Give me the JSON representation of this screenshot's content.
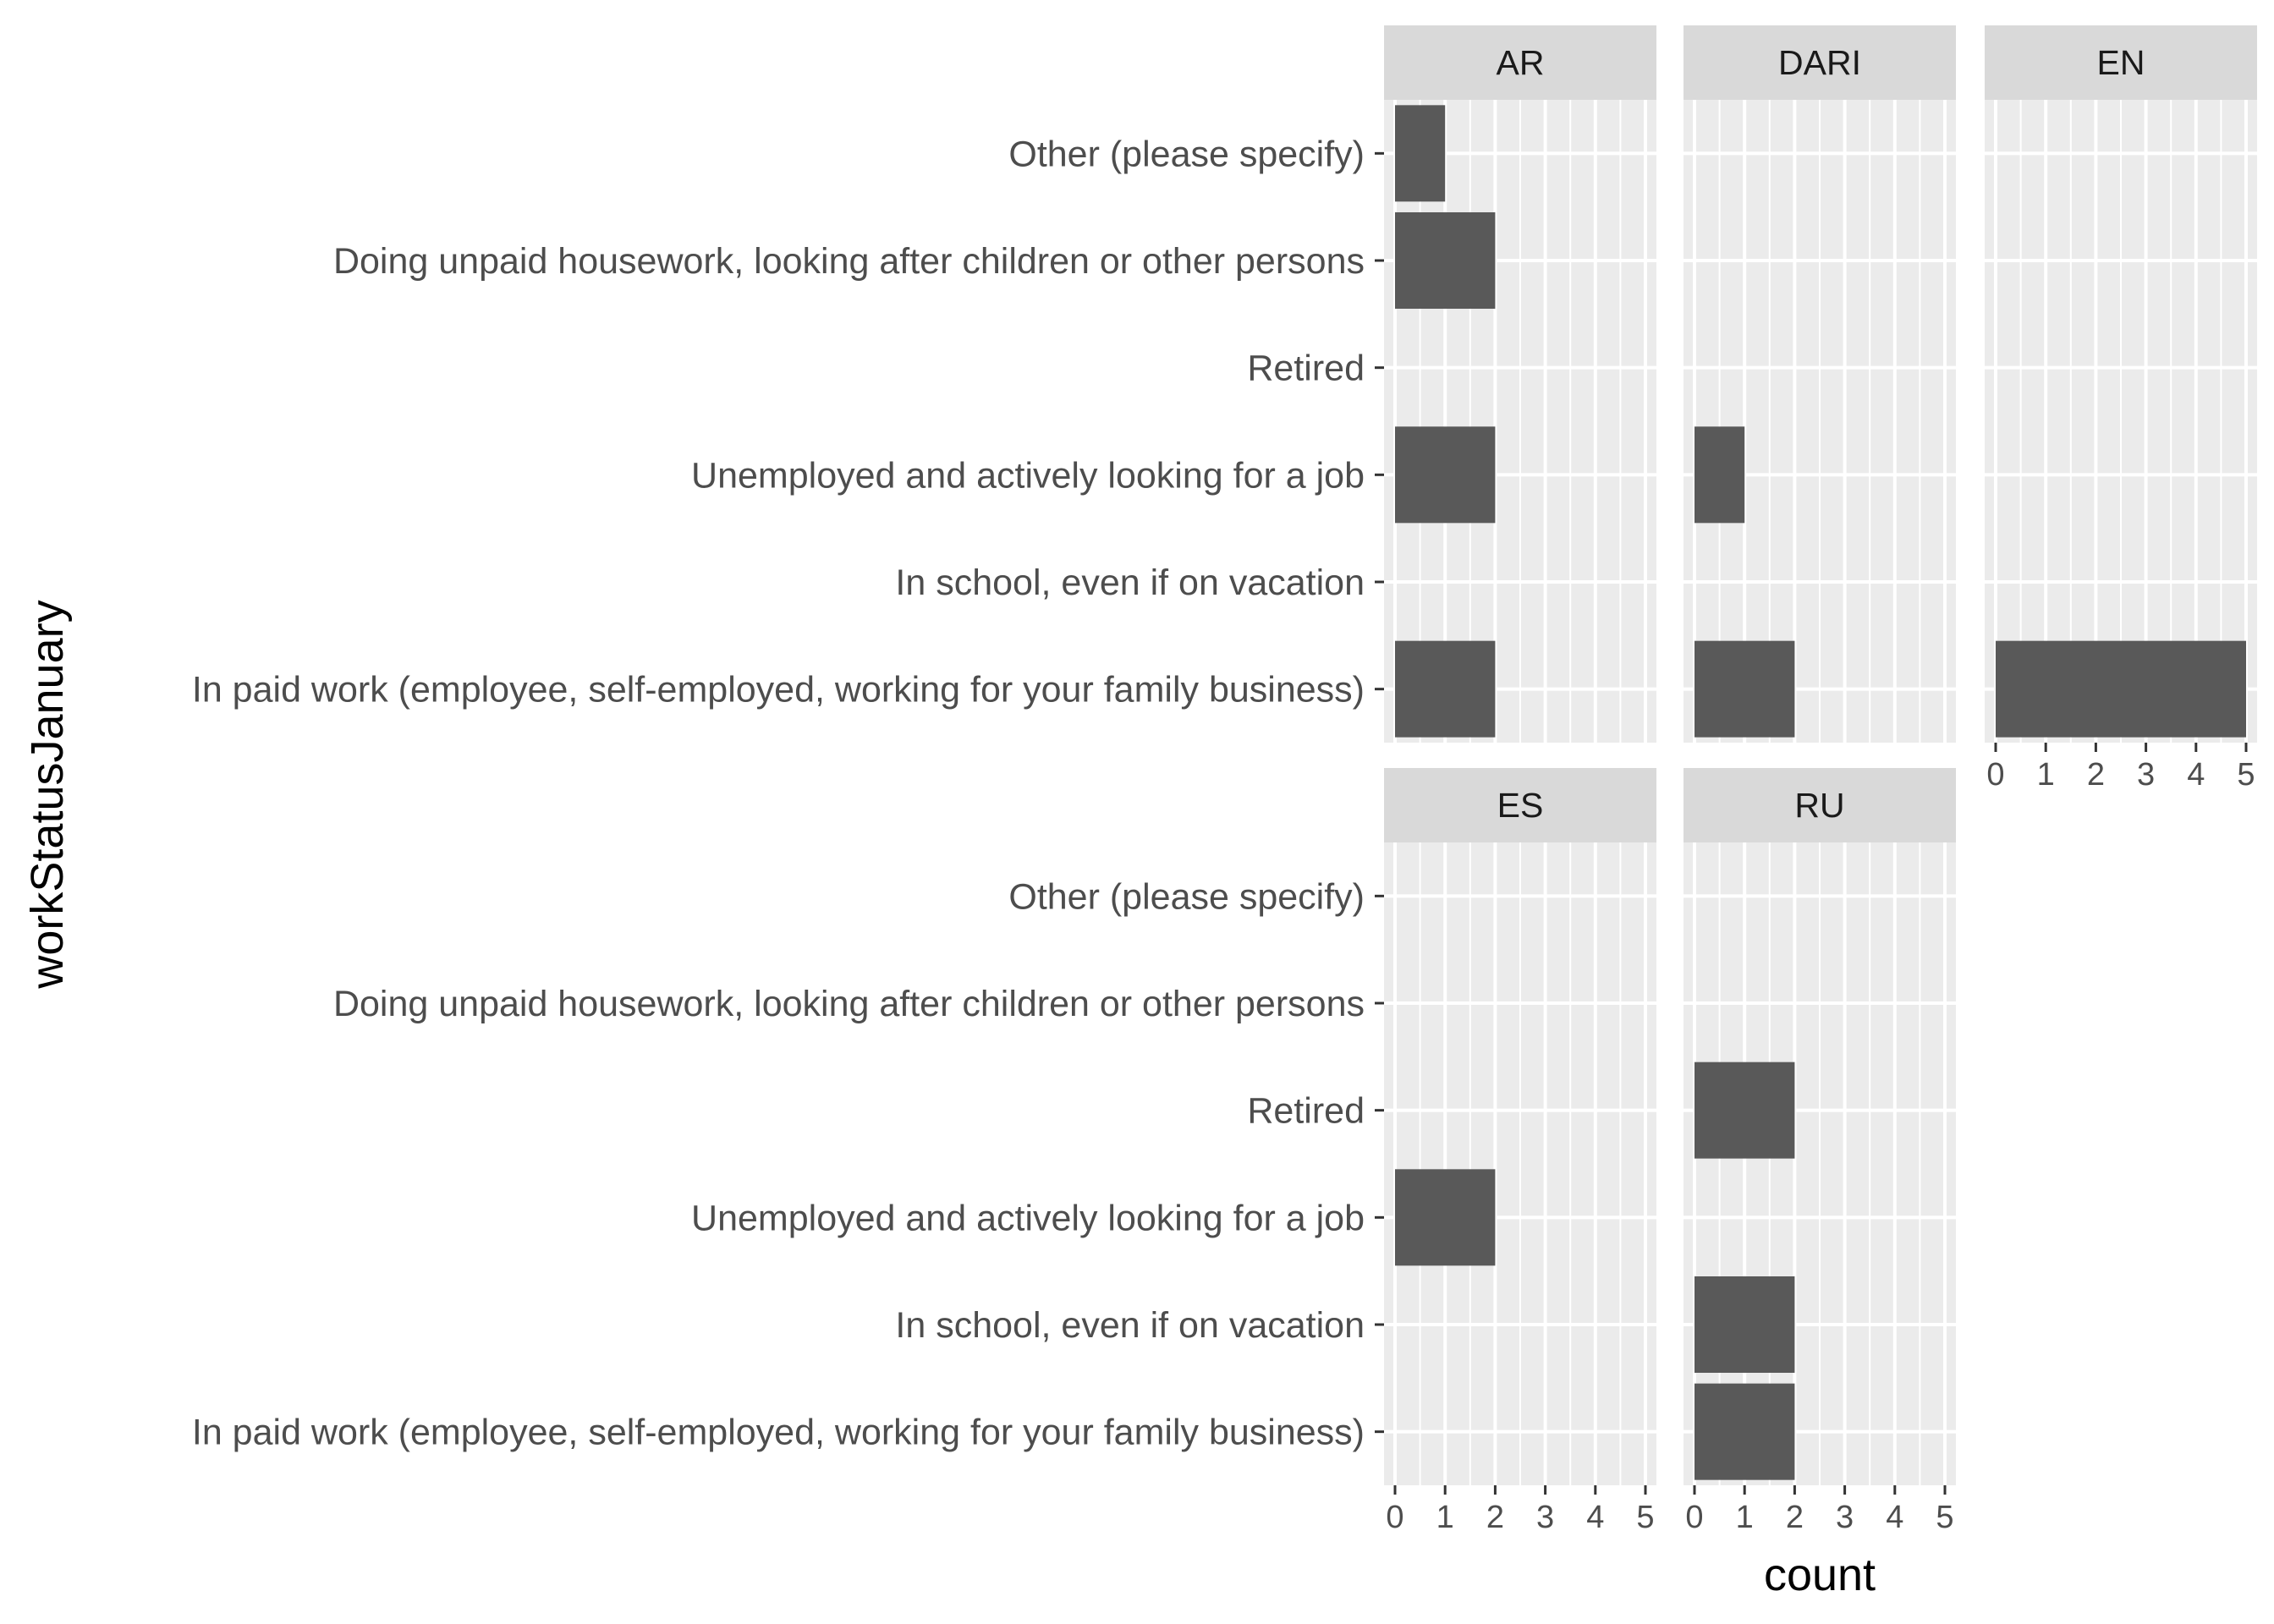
{
  "chart_data": {
    "type": "bar",
    "orientation": "horizontal",
    "facet_by": "language",
    "xlabel": "count",
    "ylabel": "workStatusJanuary",
    "xlim": [
      0,
      5
    ],
    "x_ticks": [
      "0",
      "1",
      "2",
      "3",
      "4",
      "5"
    ],
    "grid": true,
    "categories": [
      "Other (please specify)",
      "Doing unpaid housework, looking after children or other persons",
      "Retired",
      "Unemployed and actively looking for a job",
      "In school, even if on vacation",
      "In paid work (employee, self-employed, working for your family business)"
    ],
    "facets": [
      {
        "name": "AR",
        "values": [
          1,
          2,
          0,
          2,
          0,
          2
        ]
      },
      {
        "name": "DARI",
        "values": [
          0,
          0,
          0,
          1,
          0,
          2
        ]
      },
      {
        "name": "EN",
        "values": [
          0,
          0,
          0,
          0,
          0,
          5
        ]
      },
      {
        "name": "ES",
        "values": [
          0,
          0,
          0,
          2,
          0,
          0
        ]
      },
      {
        "name": "RU",
        "values": [
          0,
          0,
          2,
          0,
          2,
          2
        ]
      }
    ],
    "colors": {
      "bar": "#595959",
      "panel_background": "#ebebeb",
      "grid": "#ffffff",
      "strip_background": "#d9d9d9",
      "text": "#4d4d4d"
    }
  }
}
